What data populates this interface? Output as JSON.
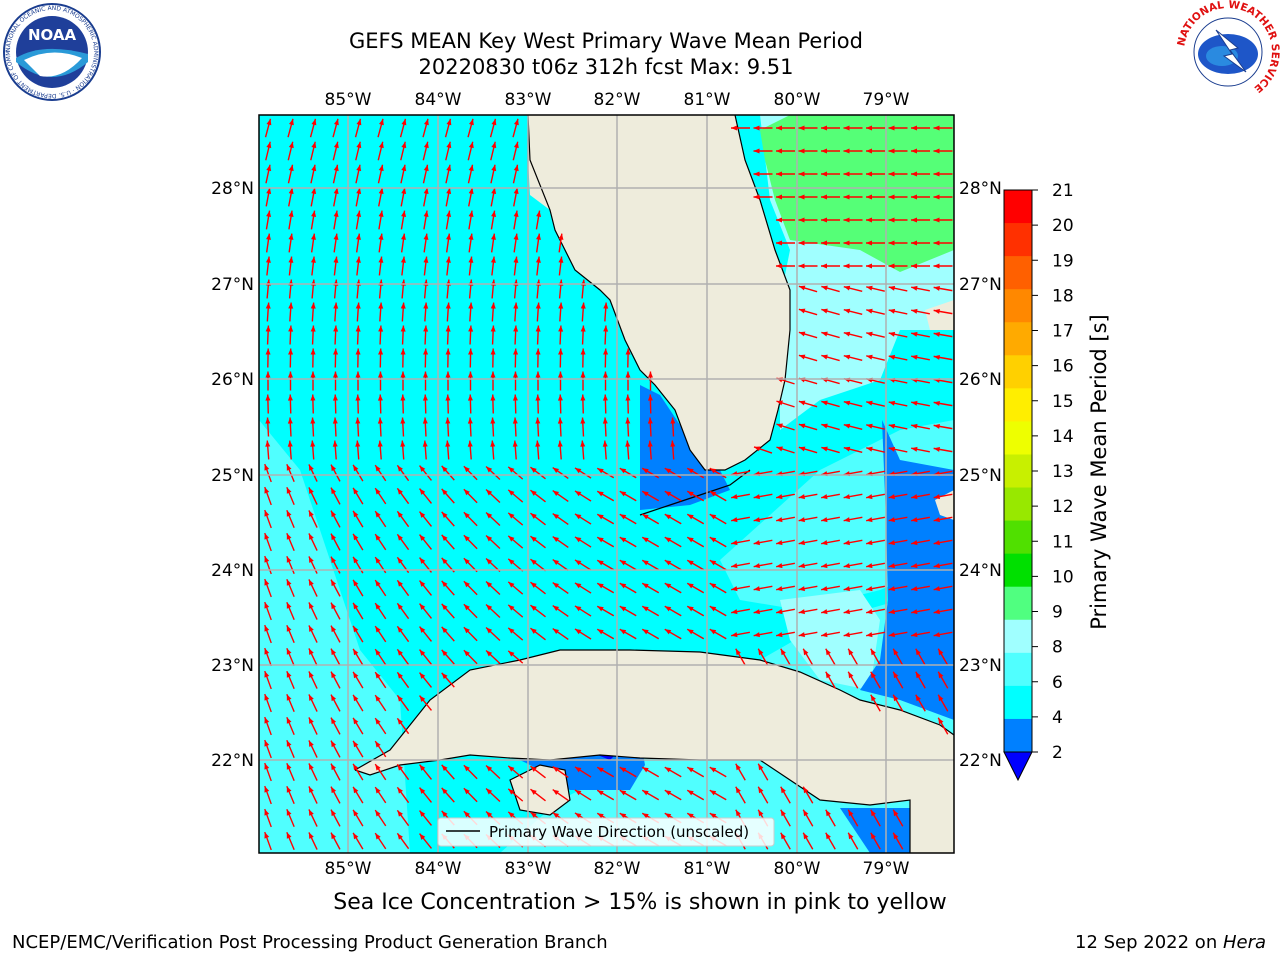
{
  "header": {
    "title_line1": "GEFS MEAN Key West Primary Wave Mean Period",
    "title_line2": "20220830 t06z 312h fcst   Max: 9.51"
  },
  "logos": {
    "noaa_text": "NOAA",
    "noaa_ring_text": "NATIONAL OCEANIC AND ATMOSPHERIC ADMINISTRATION · U.S. DEPARTMENT OF COMMERCE",
    "nws_ring_text": "NATIONAL WEATHER SERVICE"
  },
  "axes": {
    "lon_ticks": [
      "85°W",
      "84°W",
      "83°W",
      "82°W",
      "81°W",
      "80°W",
      "79°W"
    ],
    "lat_ticks": [
      "28°N",
      "27°N",
      "26°N",
      "25°N",
      "24°N",
      "23°N",
      "22°N"
    ]
  },
  "legend": {
    "label": "Primary Wave Direction (unscaled)"
  },
  "colorbar": {
    "label": "Primary Wave Mean Period [s]",
    "ticks": [
      "21",
      "20",
      "19",
      "18",
      "17",
      "16",
      "15",
      "14",
      "13",
      "12",
      "11",
      "10",
      "9",
      "8",
      "6",
      "4",
      "2"
    ],
    "colors": [
      "#ff0000",
      "#ff3000",
      "#ff6000",
      "#ff8800",
      "#ffaa00",
      "#ffd000",
      "#ffee00",
      "#eeff00",
      "#c8f000",
      "#98e800",
      "#50e000",
      "#00e000",
      "#50ff80",
      "#a0ffff",
      "#50ffff",
      "#00ffff",
      "#0080ff"
    ],
    "extend_color": "#0000ff"
  },
  "notes": {
    "sea_ice": "Sea Ice Concentration > 15% is shown in pink to yellow"
  },
  "footer": {
    "left": "NCEP/EMC/Verification Post Processing Product Generation Branch",
    "right_date": "12 Sep 2022 on ",
    "right_host": "Hera"
  },
  "map_colors": {
    "ocean_main": "#00ffff",
    "ocean_light": "#50ffff",
    "ocean_pale": "#a0ffff",
    "ocean_green": "#55ff77",
    "ocean_blue": "#0080ff",
    "ocean_deep": "#0000ff",
    "land": "#eeecdc",
    "arrow": "#ff0000",
    "grid": "#b0b0b0"
  }
}
